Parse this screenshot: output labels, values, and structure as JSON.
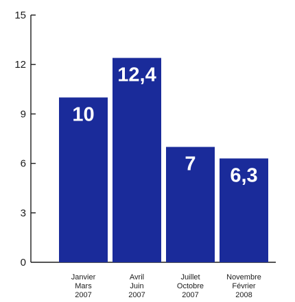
{
  "chart_data": {
    "type": "bar",
    "categories": [
      [
        "Janvier",
        "Mars",
        "2007"
      ],
      [
        "Avril",
        "Juin",
        "2007"
      ],
      [
        "Juillet",
        "Octobre",
        "2007"
      ],
      [
        "Novembre",
        "Février",
        "2008"
      ]
    ],
    "values": [
      10,
      12.4,
      7,
      6.3
    ],
    "data_labels": [
      "10",
      "12,4",
      "7",
      "6,3"
    ],
    "ylim": [
      0,
      15
    ],
    "yticks": [
      0,
      3,
      6,
      9,
      12,
      15
    ],
    "title": "",
    "xlabel": "",
    "ylabel": "",
    "grid": false,
    "bar_color": "#1a2b9a",
    "axis_color": "#1a1a1a"
  }
}
